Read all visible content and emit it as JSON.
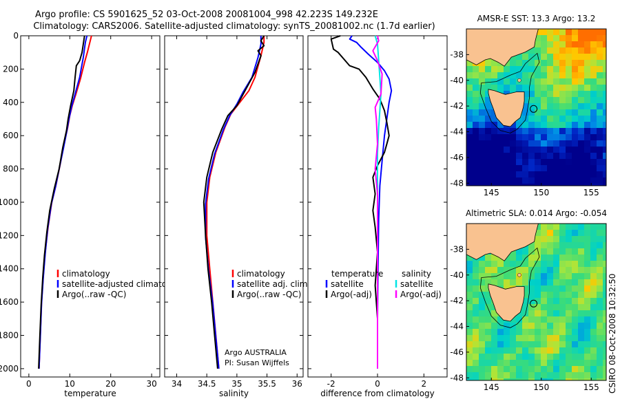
{
  "figure": {
    "title_line1": "Argo profile: CS 5901625_52 03-Oct-2008 20081004_998 42.223S 149.232E",
    "title_line2": "Climatology: CARS2006. Satellite-adjusted climatology: synTS_20081002.nc (1.7d earlier)",
    "credit_line1": "Argo AUSTRALIA",
    "credit_line2": "PI: Susan Wijffels",
    "side_label": "CSIRO 08-Oct-2008 10:32:50"
  },
  "chart_data": [
    {
      "id": "temperature",
      "type": "line",
      "xlabel": "temperature",
      "ylabel": "",
      "xlim": [
        -2,
        32
      ],
      "ylim": [
        0,
        2050
      ],
      "y_reversed": true,
      "xticks": [
        0,
        10,
        20,
        30
      ],
      "yticks": [
        0,
        200,
        400,
        600,
        800,
        1000,
        1200,
        1400,
        1600,
        1800,
        2000
      ],
      "legend": [
        "climatology",
        "satellite-adjusted climatology",
        "Argo(..raw -QC)"
      ],
      "series": [
        {
          "name": "climatology",
          "color": "#ff0000",
          "points": [
            [
              15.3,
              0
            ],
            [
              15.0,
              30
            ],
            [
              14.3,
              100
            ],
            [
              13.6,
              160
            ],
            [
              12.6,
              260
            ],
            [
              11.5,
              350
            ],
            [
              10.6,
              420
            ],
            [
              10.0,
              480
            ],
            [
              9.5,
              550
            ],
            [
              8.6,
              650
            ],
            [
              7.6,
              780
            ],
            [
              6.6,
              900
            ],
            [
              5.6,
              1000
            ],
            [
              4.7,
              1150
            ],
            [
              4.0,
              1300
            ],
            [
              3.5,
              1450
            ],
            [
              3.1,
              1600
            ],
            [
              2.8,
              1800
            ],
            [
              2.5,
              2000
            ]
          ]
        },
        {
          "name": "satellite-adjusted climatology",
          "color": "#0000ff",
          "points": [
            [
              14.2,
              0
            ],
            [
              13.8,
              40
            ],
            [
              13.3,
              130
            ],
            [
              12.4,
              250
            ],
            [
              11.3,
              350
            ],
            [
              10.4,
              430
            ],
            [
              9.8,
              500
            ],
            [
              9.3,
              570
            ],
            [
              8.5,
              670
            ],
            [
              7.5,
              790
            ],
            [
              6.5,
              910
            ],
            [
              5.5,
              1010
            ],
            [
              4.6,
              1160
            ],
            [
              4.0,
              1310
            ],
            [
              3.5,
              1460
            ],
            [
              3.1,
              1610
            ],
            [
              2.8,
              1810
            ],
            [
              2.5,
              2000
            ]
          ]
        },
        {
          "name": "Argo(..raw -QC)",
          "color": "#000000",
          "points": [
            [
              13.6,
              0
            ],
            [
              13.3,
              50
            ],
            [
              13.0,
              100
            ],
            [
              12.4,
              150
            ],
            [
              11.6,
              180
            ],
            [
              11.3,
              250
            ],
            [
              11.0,
              330
            ],
            [
              10.2,
              420
            ],
            [
              9.6,
              500
            ],
            [
              9.2,
              570
            ],
            [
              8.3,
              670
            ],
            [
              7.4,
              800
            ],
            [
              6.2,
              920
            ],
            [
              5.1,
              1050
            ],
            [
              4.4,
              1180
            ],
            [
              3.8,
              1320
            ],
            [
              3.4,
              1450
            ],
            [
              3.0,
              1620
            ],
            [
              2.7,
              1800
            ],
            [
              2.4,
              2000
            ]
          ]
        }
      ]
    },
    {
      "id": "salinity",
      "type": "line",
      "xlabel": "salinity",
      "ylabel": "",
      "xlim": [
        33.8,
        36.1
      ],
      "ylim": [
        0,
        2050
      ],
      "y_reversed": true,
      "xticks": [
        34,
        34.5,
        35,
        35.5,
        36
      ],
      "xticklabels": [
        "34",
        "34.5",
        "35",
        "35.5",
        "36"
      ],
      "legend": [
        "climatology",
        "satellite adj. clim.",
        "Argo(..raw -QC)"
      ],
      "series": [
        {
          "name": "climatology",
          "color": "#ff0000",
          "points": [
            [
              35.45,
              0
            ],
            [
              35.45,
              40
            ],
            [
              35.4,
              120
            ],
            [
              35.3,
              250
            ],
            [
              35.2,
              330
            ],
            [
              35.05,
              400
            ],
            [
              34.9,
              470
            ],
            [
              34.8,
              550
            ],
            [
              34.65,
              700
            ],
            [
              34.55,
              850
            ],
            [
              34.5,
              1000
            ],
            [
              34.5,
              1200
            ],
            [
              34.55,
              1400
            ],
            [
              34.6,
              1600
            ],
            [
              34.65,
              1800
            ],
            [
              34.7,
              2000
            ]
          ]
        },
        {
          "name": "satellite adj. clim.",
          "color": "#0000ff",
          "points": [
            [
              35.4,
              0
            ],
            [
              35.4,
              50
            ],
            [
              35.35,
              130
            ],
            [
              35.25,
              250
            ],
            [
              35.1,
              340
            ],
            [
              35.0,
              410
            ],
            [
              34.88,
              480
            ],
            [
              34.78,
              560
            ],
            [
              34.63,
              710
            ],
            [
              34.53,
              860
            ],
            [
              34.48,
              1010
            ],
            [
              34.48,
              1210
            ],
            [
              34.53,
              1410
            ],
            [
              34.6,
              1610
            ],
            [
              34.65,
              1810
            ],
            [
              34.7,
              2000
            ]
          ]
        },
        {
          "name": "Argo(..raw -QC)",
          "color": "#000000",
          "points": [
            [
              35.45,
              0
            ],
            [
              35.4,
              30
            ],
            [
              35.45,
              60
            ],
            [
              35.35,
              90
            ],
            [
              35.4,
              120
            ],
            [
              35.3,
              220
            ],
            [
              35.15,
              320
            ],
            [
              35.0,
              420
            ],
            [
              34.85,
              480
            ],
            [
              34.75,
              560
            ],
            [
              34.6,
              700
            ],
            [
              34.5,
              850
            ],
            [
              34.45,
              1000
            ],
            [
              34.48,
              1200
            ],
            [
              34.52,
              1400
            ],
            [
              34.58,
              1600
            ],
            [
              34.63,
              1800
            ],
            [
              34.68,
              2000
            ]
          ]
        }
      ]
    },
    {
      "id": "difference",
      "type": "line",
      "xlabel": "difference from climatology",
      "ylabel": "",
      "xlim": [
        -3,
        3
      ],
      "ylim": [
        0,
        2050
      ],
      "y_reversed": true,
      "xticks": [
        -2,
        0,
        2
      ],
      "legend_temperature": {
        "title": "temperature",
        "items": [
          "satellite",
          "Argo(-adj)"
        ]
      },
      "legend_salinity": {
        "title": "salinity",
        "items": [
          "satellite",
          "Argo(-adj)"
        ]
      },
      "series": [
        {
          "name": "temperature satellite",
          "color": "#0000ff",
          "points": [
            [
              -1.1,
              0
            ],
            [
              -1.2,
              20
            ],
            [
              -0.9,
              40
            ],
            [
              -0.7,
              70
            ],
            [
              -0.4,
              110
            ],
            [
              0.0,
              160
            ],
            [
              0.3,
              210
            ],
            [
              0.5,
              260
            ],
            [
              0.6,
              330
            ],
            [
              0.5,
              400
            ],
            [
              0.4,
              500
            ],
            [
              0.3,
              600
            ],
            [
              0.2,
              750
            ],
            [
              0.1,
              900
            ],
            [
              0.05,
              1100
            ],
            [
              0.02,
              1400
            ],
            [
              0.0,
              1700
            ],
            [
              0.0,
              2000
            ]
          ]
        },
        {
          "name": "temperature Argo(-adj)",
          "color": "#000000",
          "points": [
            [
              -1.6,
              0
            ],
            [
              -2.0,
              20
            ],
            [
              -1.9,
              80
            ],
            [
              -1.7,
              100
            ],
            [
              -1.2,
              180
            ],
            [
              -0.8,
              200
            ],
            [
              -0.5,
              250
            ],
            [
              -0.2,
              320
            ],
            [
              0.1,
              380
            ],
            [
              0.3,
              450
            ],
            [
              0.4,
              520
            ],
            [
              0.5,
              600
            ],
            [
              0.4,
              650
            ],
            [
              0.3,
              700
            ],
            [
              0.0,
              780
            ],
            [
              -0.2,
              850
            ],
            [
              -0.1,
              950
            ],
            [
              -0.2,
              1050
            ],
            [
              -0.1,
              1150
            ],
            [
              0.0,
              1300
            ],
            [
              -0.1,
              1500
            ],
            [
              0.0,
              1700
            ],
            [
              0.0,
              2000
            ]
          ]
        },
        {
          "name": "salinity satellite",
          "color": "#00e5e5",
          "points": [
            [
              -0.1,
              0
            ],
            [
              0.0,
              50
            ],
            [
              0.05,
              150
            ],
            [
              0.1,
              250
            ],
            [
              0.15,
              350
            ],
            [
              0.1,
              450
            ],
            [
              0.05,
              550
            ],
            [
              0.0,
              700
            ],
            [
              0.0,
              900
            ],
            [
              0.0,
              1200
            ],
            [
              0.0,
              1500
            ],
            [
              0.0,
              2000
            ]
          ]
        },
        {
          "name": "salinity Argo(-adj)",
          "color": "#ff00ff",
          "points": [
            [
              0.0,
              0
            ],
            [
              0.05,
              30
            ],
            [
              -0.2,
              90
            ],
            [
              0.0,
              150
            ],
            [
              0.2,
              230
            ],
            [
              0.15,
              350
            ],
            [
              -0.1,
              430
            ],
            [
              -0.05,
              500
            ],
            [
              0.0,
              650
            ],
            [
              -0.1,
              800
            ],
            [
              0.0,
              950
            ],
            [
              0.0,
              1200
            ],
            [
              0.0,
              1500
            ],
            [
              0.0,
              2000
            ]
          ]
        }
      ]
    },
    {
      "id": "sst_map",
      "type": "heatmap",
      "title": "AMSR-E SST: 13.3 Argo: 13.2",
      "xlim": [
        142.5,
        156.5
      ],
      "ylim": [
        -48.2,
        -36
      ],
      "xticks": [
        145,
        150,
        155
      ],
      "yticks": [
        -38,
        -40,
        -42,
        -44,
        -46,
        -48
      ],
      "profile_location": [
        149.232,
        -42.223
      ]
    },
    {
      "id": "sla_map",
      "type": "heatmap",
      "title": "Altimetric SLA: 0.014 Argo: -0.054",
      "xlim": [
        142.5,
        156.5
      ],
      "ylim": [
        -48.2,
        -36
      ],
      "xticks": [
        145,
        150,
        155
      ],
      "yticks": [
        -38,
        -40,
        -42,
        -44,
        -46,
        -48
      ],
      "profile_location": [
        149.232,
        -42.223
      ]
    }
  ]
}
